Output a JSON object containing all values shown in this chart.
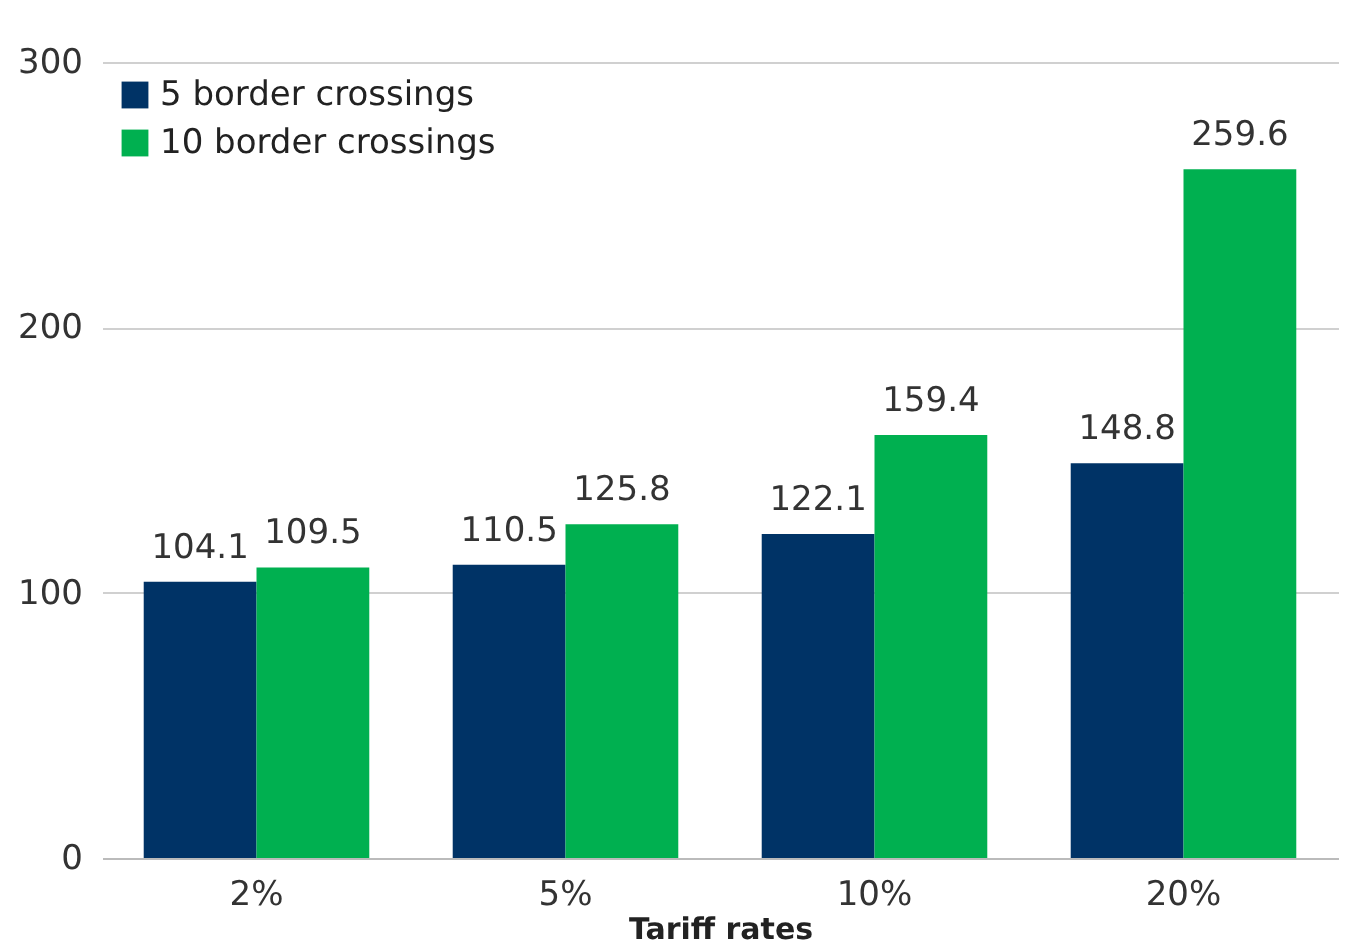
{
  "chart_data": {
    "type": "bar",
    "xlabel": "Tariff rates",
    "categories": [
      "2%",
      "5%",
      "10%",
      "20%"
    ],
    "series": [
      {
        "name": "5 border crossings",
        "color": "#003366",
        "values": [
          104.1,
          110.5,
          122.1,
          148.8
        ]
      },
      {
        "name": "10 border crossings",
        "color": "#00b050",
        "values": [
          109.5,
          125.8,
          159.4,
          259.6
        ]
      }
    ],
    "ylim": [
      0,
      300
    ],
    "yticks": [
      0,
      100,
      200,
      300
    ],
    "grid": "y",
    "legend": "top left",
    "data_labels": true
  }
}
